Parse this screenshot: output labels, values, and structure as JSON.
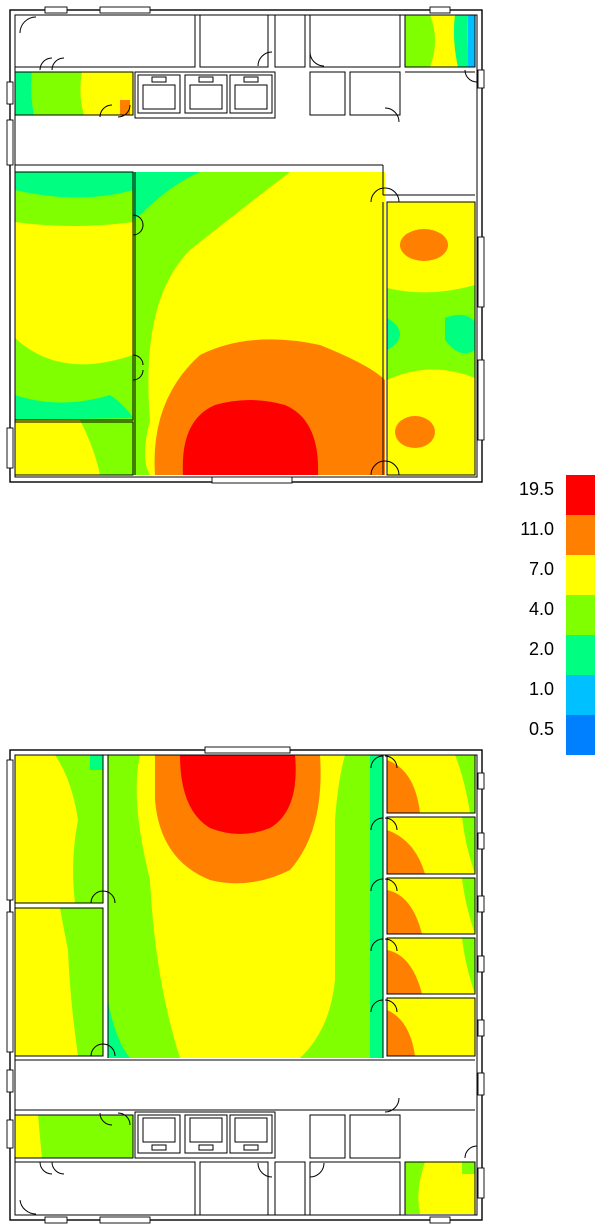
{
  "legend": {
    "levels": [
      {
        "label": "19.5",
        "color": "#FF0000"
      },
      {
        "label": "11.0",
        "color": "#FF8000"
      },
      {
        "label": "7.0",
        "color": "#FFFF00"
      },
      {
        "label": "4.0",
        "color": "#80FF00"
      },
      {
        "label": "2.0",
        "color": "#00FF80"
      },
      {
        "label": "1.0",
        "color": "#00C0FF"
      },
      {
        "label": "0.5",
        "color": "#0080FF"
      }
    ]
  }
}
